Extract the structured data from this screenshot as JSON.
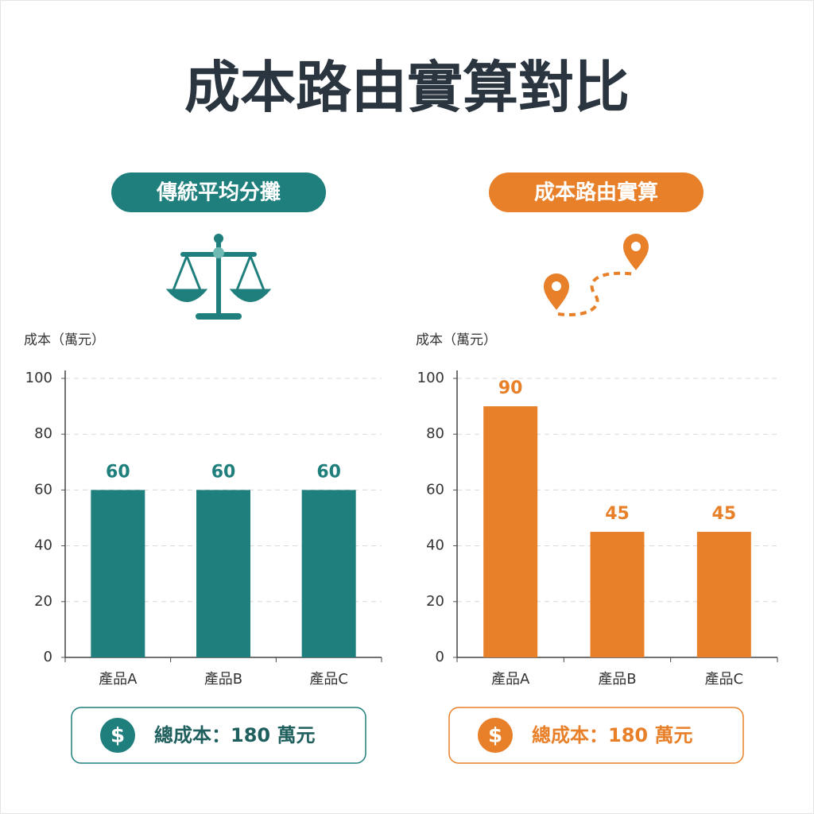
{
  "title": "成本路由實算對比",
  "chart_data": [
    {
      "type": "bar",
      "label": "傳統平均分攤",
      "y_label": "成本（萬元）",
      "categories": [
        "產品A",
        "產品B",
        "產品C"
      ],
      "values": [
        60,
        60,
        60
      ],
      "color": "#1f7f7c",
      "ylim": [
        0,
        100
      ],
      "yticks": [
        0,
        20,
        40,
        60,
        80,
        100
      ],
      "grid": true,
      "total_icon": "$",
      "total": "總成本：180 萬元"
    },
    {
      "type": "bar",
      "label": "成本路由實算",
      "y_label": "成本（萬元）",
      "categories": [
        "產品A",
        "產品B",
        "產品C"
      ],
      "values": [
        90,
        45,
        45
      ],
      "color": "#e8802a",
      "ylim": [
        0,
        100
      ],
      "yticks": [
        0,
        20,
        40,
        60,
        80,
        100
      ],
      "grid": true,
      "total_icon": "$",
      "total": "總成本：180 萬元"
    }
  ]
}
